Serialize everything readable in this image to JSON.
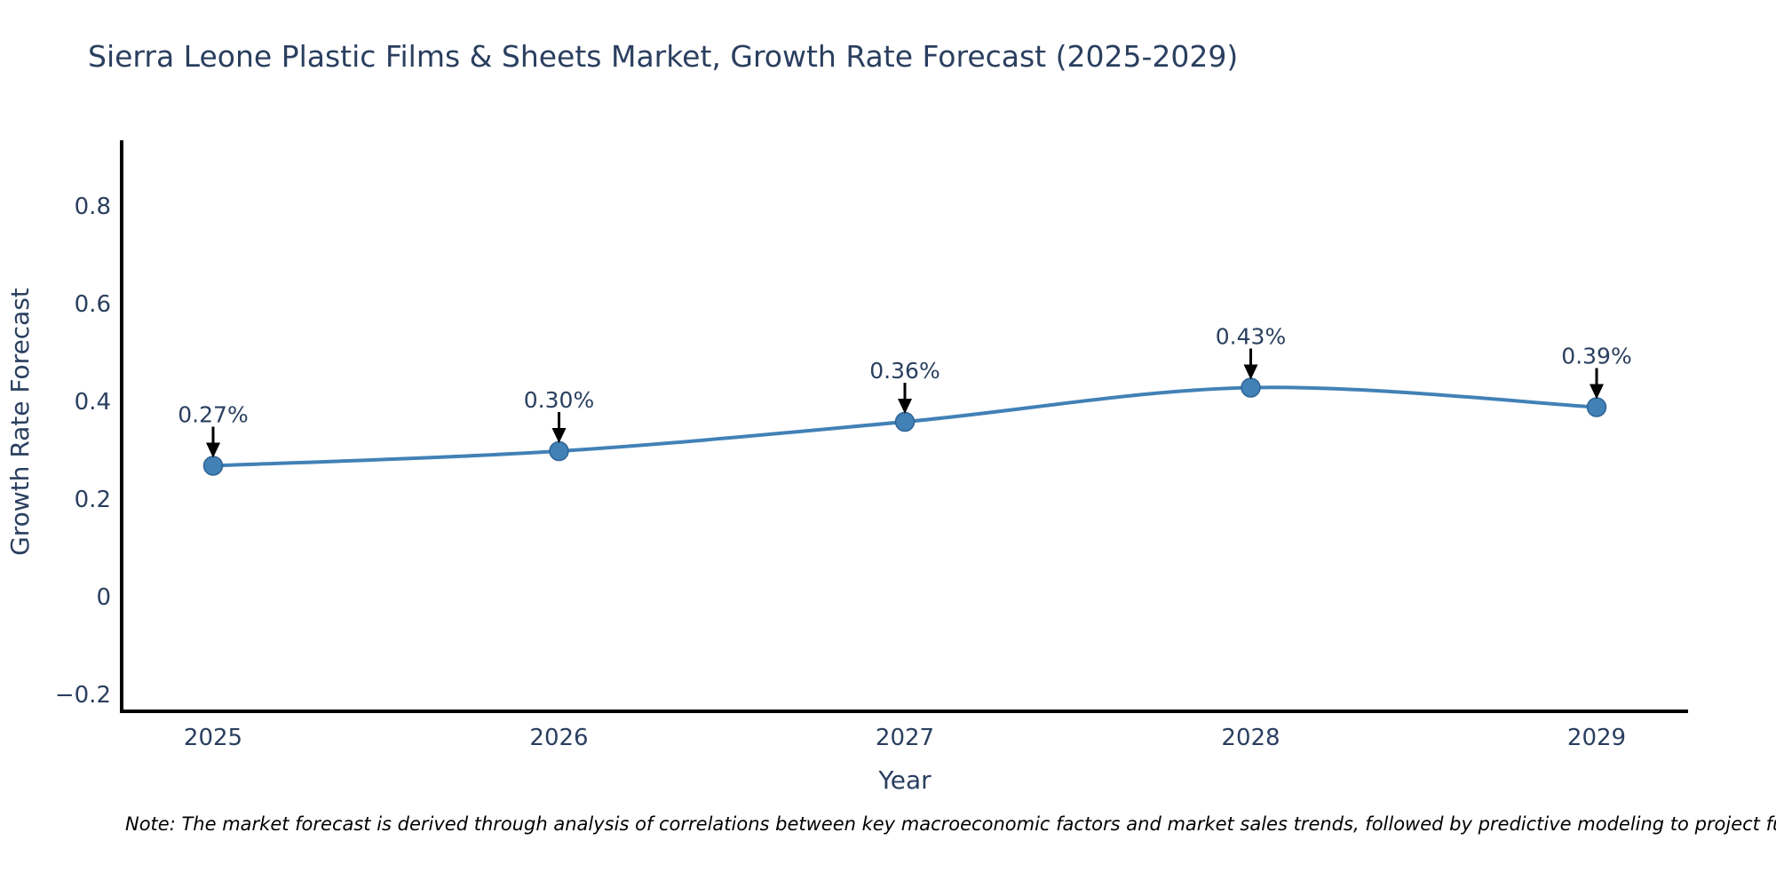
{
  "title": "Sierra Leone Plastic Films & Sheets Market, Growth Rate Forecast (2025-2029)",
  "note": "Note: The market forecast is derived through analysis of correlations between key macroeconomic factors and market sales trends, followed by predictive modeling to project future sales.",
  "chart_data": {
    "type": "line",
    "title": "Sierra Leone Plastic Films & Sheets Market, Growth Rate Forecast (2025-2029)",
    "xlabel": "Year",
    "ylabel": "Growth Rate Forecast",
    "categories": [
      "2025",
      "2026",
      "2027",
      "2028",
      "2029"
    ],
    "x": [
      2025,
      2026,
      2027,
      2028,
      2029
    ],
    "series": [
      {
        "name": "Growth Rate Forecast",
        "values": [
          0.27,
          0.3,
          0.36,
          0.43,
          0.39
        ],
        "point_labels": [
          "0.27%",
          "0.30%",
          "0.36%",
          "0.43%",
          "0.39%"
        ]
      }
    ],
    "y_ticks": {
      "values": [
        -0.2,
        0,
        0.2,
        0.4,
        0.6,
        0.8
      ],
      "labels": [
        "−0.2",
        "0",
        "0.2",
        "0.4",
        "0.6",
        "0.8"
      ]
    },
    "ylim": [
      -0.232,
      0.935
    ],
    "grid": false,
    "legend": "none",
    "line_shape": "spline",
    "annotation_style": "down-arrow",
    "colors": {
      "line": "#4181b6",
      "marker": "#4181b6",
      "marker_edge": "#2f6496",
      "axis": "#000000",
      "text": "#2a3f5f",
      "annotation_arrow": "#000000",
      "note_text": "#000000",
      "background": "#ffffff"
    }
  }
}
